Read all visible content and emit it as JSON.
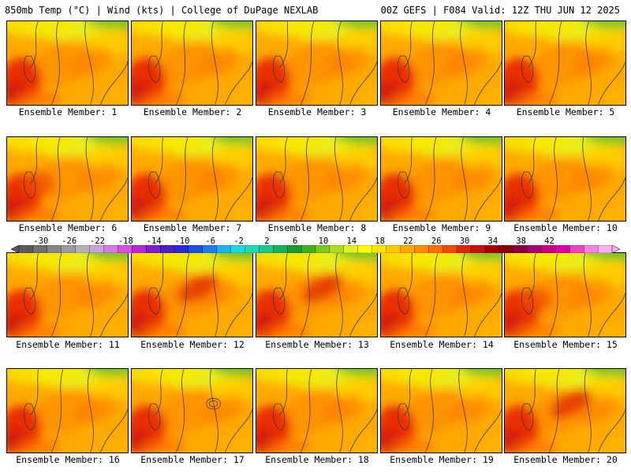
{
  "header": {
    "left": "850mb Temp (°C) | Wind (kts) | College of DuPage NEXLAB",
    "right": "00Z GEFS | F084 Valid: 12Z THU JUN 12 2025"
  },
  "members": [
    {
      "caption": "Ensemble Member: 1"
    },
    {
      "caption": "Ensemble Member: 2"
    },
    {
      "caption": "Ensemble Member: 3"
    },
    {
      "caption": "Ensemble Member: 4"
    },
    {
      "caption": "Ensemble Member: 5"
    },
    {
      "caption": "Ensemble Member: 6"
    },
    {
      "caption": "Ensemble Member: 7"
    },
    {
      "caption": "Ensemble Member: 8"
    },
    {
      "caption": "Ensemble Member: 9"
    },
    {
      "caption": "Ensemble Member: 10"
    },
    {
      "caption": "Ensemble Member: 11"
    },
    {
      "caption": "Ensemble Member: 12"
    },
    {
      "caption": "Ensemble Member: 13"
    },
    {
      "caption": "Ensemble Member: 14"
    },
    {
      "caption": "Ensemble Member: 15"
    },
    {
      "caption": "Ensemble Member: 16"
    },
    {
      "caption": "Ensemble Member: 17"
    },
    {
      "caption": "Ensemble Member: 18"
    },
    {
      "caption": "Ensemble Member: 19"
    },
    {
      "caption": "Ensemble Member: 20"
    }
  ],
  "colorbar": {
    "labels": [
      "-30",
      "-26",
      "-22",
      "-18",
      "-14",
      "-10",
      "-6",
      "-2",
      "2",
      "6",
      "10",
      "14",
      "18",
      "22",
      "26",
      "30",
      "34",
      "38",
      "42"
    ],
    "colors": [
      "#5b5b5b",
      "#707070",
      "#868686",
      "#9c9c9c",
      "#b2b2b2",
      "#c9a3d6",
      "#d27be0",
      "#d94fe6",
      "#b42ad6",
      "#7b1fd0",
      "#4b1fc8",
      "#2a2ad6",
      "#1f4fe0",
      "#1f7bea",
      "#1fb0f0",
      "#1fd8e0",
      "#1fd8b0",
      "#1fc88a",
      "#18b05c",
      "#209a30",
      "#3fb020",
      "#7ac820",
      "#b0dc20",
      "#e0f020",
      "#ffff00",
      "#ffe400",
      "#ffc800",
      "#ffaa00",
      "#ff8c00",
      "#ff6e00",
      "#f04a00",
      "#e02800",
      "#c81010",
      "#a80000",
      "#880000",
      "#880040",
      "#a8006e",
      "#c8008c",
      "#e000aa",
      "#f040c8",
      "#f880e0",
      "#fcb0f0"
    ]
  }
}
